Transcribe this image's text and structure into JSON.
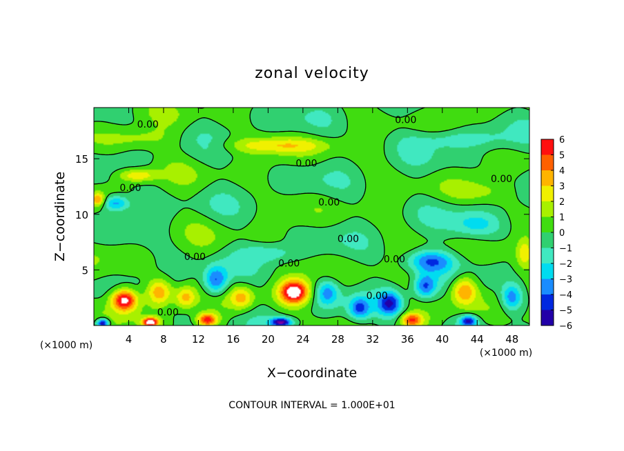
{
  "chart_data": {
    "type": "heatmap",
    "title": "zonal velocity",
    "xlabel": "X−coordinate",
    "ylabel": "Z−coordinate",
    "x_unit": "(×1000 m)",
    "x_unit_right": "(×1000 m)",
    "xlim": [
      0,
      50
    ],
    "ylim": [
      0,
      19.6
    ],
    "x_ticks": [
      4,
      8,
      12,
      16,
      20,
      24,
      28,
      32,
      36,
      40,
      44,
      48
    ],
    "y_ticks": [
      5,
      10,
      15
    ],
    "colorbar": {
      "min": -6,
      "max": 6,
      "ticks": [
        6,
        5,
        4,
        3,
        2,
        1,
        0,
        -1,
        -2,
        -3,
        -4,
        -5,
        -6
      ],
      "tick_labels": [
        "6",
        "5",
        "4",
        "3",
        "2",
        "1",
        "0",
        "−1",
        "−2",
        "−3",
        "−4",
        "−5",
        "−6"
      ]
    },
    "contour_level_label": "0.00",
    "contour_labels": [
      {
        "x": 6.2,
        "z": 18.1
      },
      {
        "x": 35.8,
        "z": 18.5
      },
      {
        "x": 24.4,
        "z": 14.6
      },
      {
        "x": 46.8,
        "z": 13.2
      },
      {
        "x": 4.2,
        "z": 12.4
      },
      {
        "x": 27.0,
        "z": 11.1
      },
      {
        "x": 29.2,
        "z": 7.8
      },
      {
        "x": 11.6,
        "z": 6.2
      },
      {
        "x": 22.4,
        "z": 5.6
      },
      {
        "x": 34.5,
        "z": 6.0
      },
      {
        "x": 32.5,
        "z": 2.7
      },
      {
        "x": 8.5,
        "z": 1.2
      }
    ],
    "features": [
      {
        "x": 3.5,
        "z": 2.3,
        "value": 7.0,
        "sx": 1.5,
        "sz": 1.0
      },
      {
        "x": 7.5,
        "z": 3.0,
        "value": 4.2,
        "sx": 1.5,
        "sz": 1.2
      },
      {
        "x": 10.5,
        "z": 2.5,
        "value": 3.5,
        "sx": 1.2,
        "sz": 1.0
      },
      {
        "x": 14.0,
        "z": 4.0,
        "value": -4.6,
        "sx": 1.4,
        "sz": 1.3
      },
      {
        "x": 17.0,
        "z": 2.5,
        "value": 3.0,
        "sx": 1.3,
        "sz": 1.0
      },
      {
        "x": 23.0,
        "z": 3.0,
        "value": 7.0,
        "sx": 1.7,
        "sz": 1.1
      },
      {
        "x": 26.8,
        "z": 3.0,
        "value": -3.2,
        "sx": 1.3,
        "sz": 1.2
      },
      {
        "x": 30.5,
        "z": 1.5,
        "value": -3.8,
        "sx": 1.2,
        "sz": 1.0
      },
      {
        "x": 34.0,
        "z": 2.0,
        "value": -4.6,
        "sx": 1.4,
        "sz": 1.1
      },
      {
        "x": 38.0,
        "z": 3.5,
        "value": -4.2,
        "sx": 1.3,
        "sz": 1.1
      },
      {
        "x": 42.5,
        "z": 3.2,
        "value": 4.4,
        "sx": 1.5,
        "sz": 1.3
      },
      {
        "x": 48.0,
        "z": 2.5,
        "value": -3.8,
        "sx": 1.2,
        "sz": 1.2
      },
      {
        "x": 2.5,
        "z": 11.0,
        "value": -3.8,
        "sx": 1.6,
        "sz": 0.7
      },
      {
        "x": 38.5,
        "z": 5.8,
        "value": -4.0,
        "sx": 2.8,
        "sz": 1.0
      },
      {
        "x": 44.0,
        "z": 9.0,
        "value": -2.2,
        "sx": 3.0,
        "sz": 1.2
      },
      {
        "x": 42.0,
        "z": 16.8,
        "value": -1.6,
        "sx": 6.0,
        "sz": 0.9
      },
      {
        "x": 21.0,
        "z": 16.2,
        "value": 2.4,
        "sx": 6.0,
        "sz": 0.7
      },
      {
        "x": 5.0,
        "z": 13.5,
        "value": 3.2,
        "sx": 2.2,
        "sz": 0.6
      },
      {
        "x": 0.5,
        "z": 11.3,
        "value": 3.5,
        "sx": 0.8,
        "sz": 0.6
      },
      {
        "x": 49.5,
        "z": 6.5,
        "value": 2.8,
        "sx": 1.0,
        "sz": 1.3
      },
      {
        "x": 20.0,
        "z": 6.5,
        "value": -1.8,
        "sx": 3.0,
        "sz": 0.8
      },
      {
        "x": 5.0,
        "z": 16.8,
        "value": 1.6,
        "sx": 4.0,
        "sz": 1.0
      },
      {
        "x": 44.0,
        "z": 12.0,
        "value": 1.0,
        "sx": 4.0,
        "sz": 1.0
      },
      {
        "x": 1.0,
        "z": 0.2,
        "value": -6.5,
        "sx": 0.7,
        "sz": 0.4
      },
      {
        "x": 6.5,
        "z": 0.3,
        "value": 7.0,
        "sx": 0.9,
        "sz": 0.4
      },
      {
        "x": 13.0,
        "z": 0.5,
        "value": 5.8,
        "sx": 1.2,
        "sz": 0.6
      },
      {
        "x": 21.5,
        "z": 0.3,
        "value": -6.0,
        "sx": 1.2,
        "sz": 0.4
      },
      {
        "x": 36.5,
        "z": 0.5,
        "value": 4.8,
        "sx": 1.2,
        "sz": 0.6
      },
      {
        "x": 43.0,
        "z": 0.4,
        "value": -5.0,
        "sx": 1.0,
        "sz": 0.5
      }
    ]
  },
  "footer": {
    "contour_interval": "CONTOUR INTERVAL = 1.000E+01"
  },
  "colors": {
    "palette": [
      "#7a00a0",
      "#2200a8",
      "#0028e0",
      "#1a8cff",
      "#00dcf0",
      "#40e8c0",
      "#30d070",
      "#40dc10",
      "#a8f000",
      "#f0f000",
      "#ffb400",
      "#ff6000",
      "#ff1010",
      "#ff90a0"
    ],
    "white_core": "#ffffff",
    "contour": "#000000"
  }
}
